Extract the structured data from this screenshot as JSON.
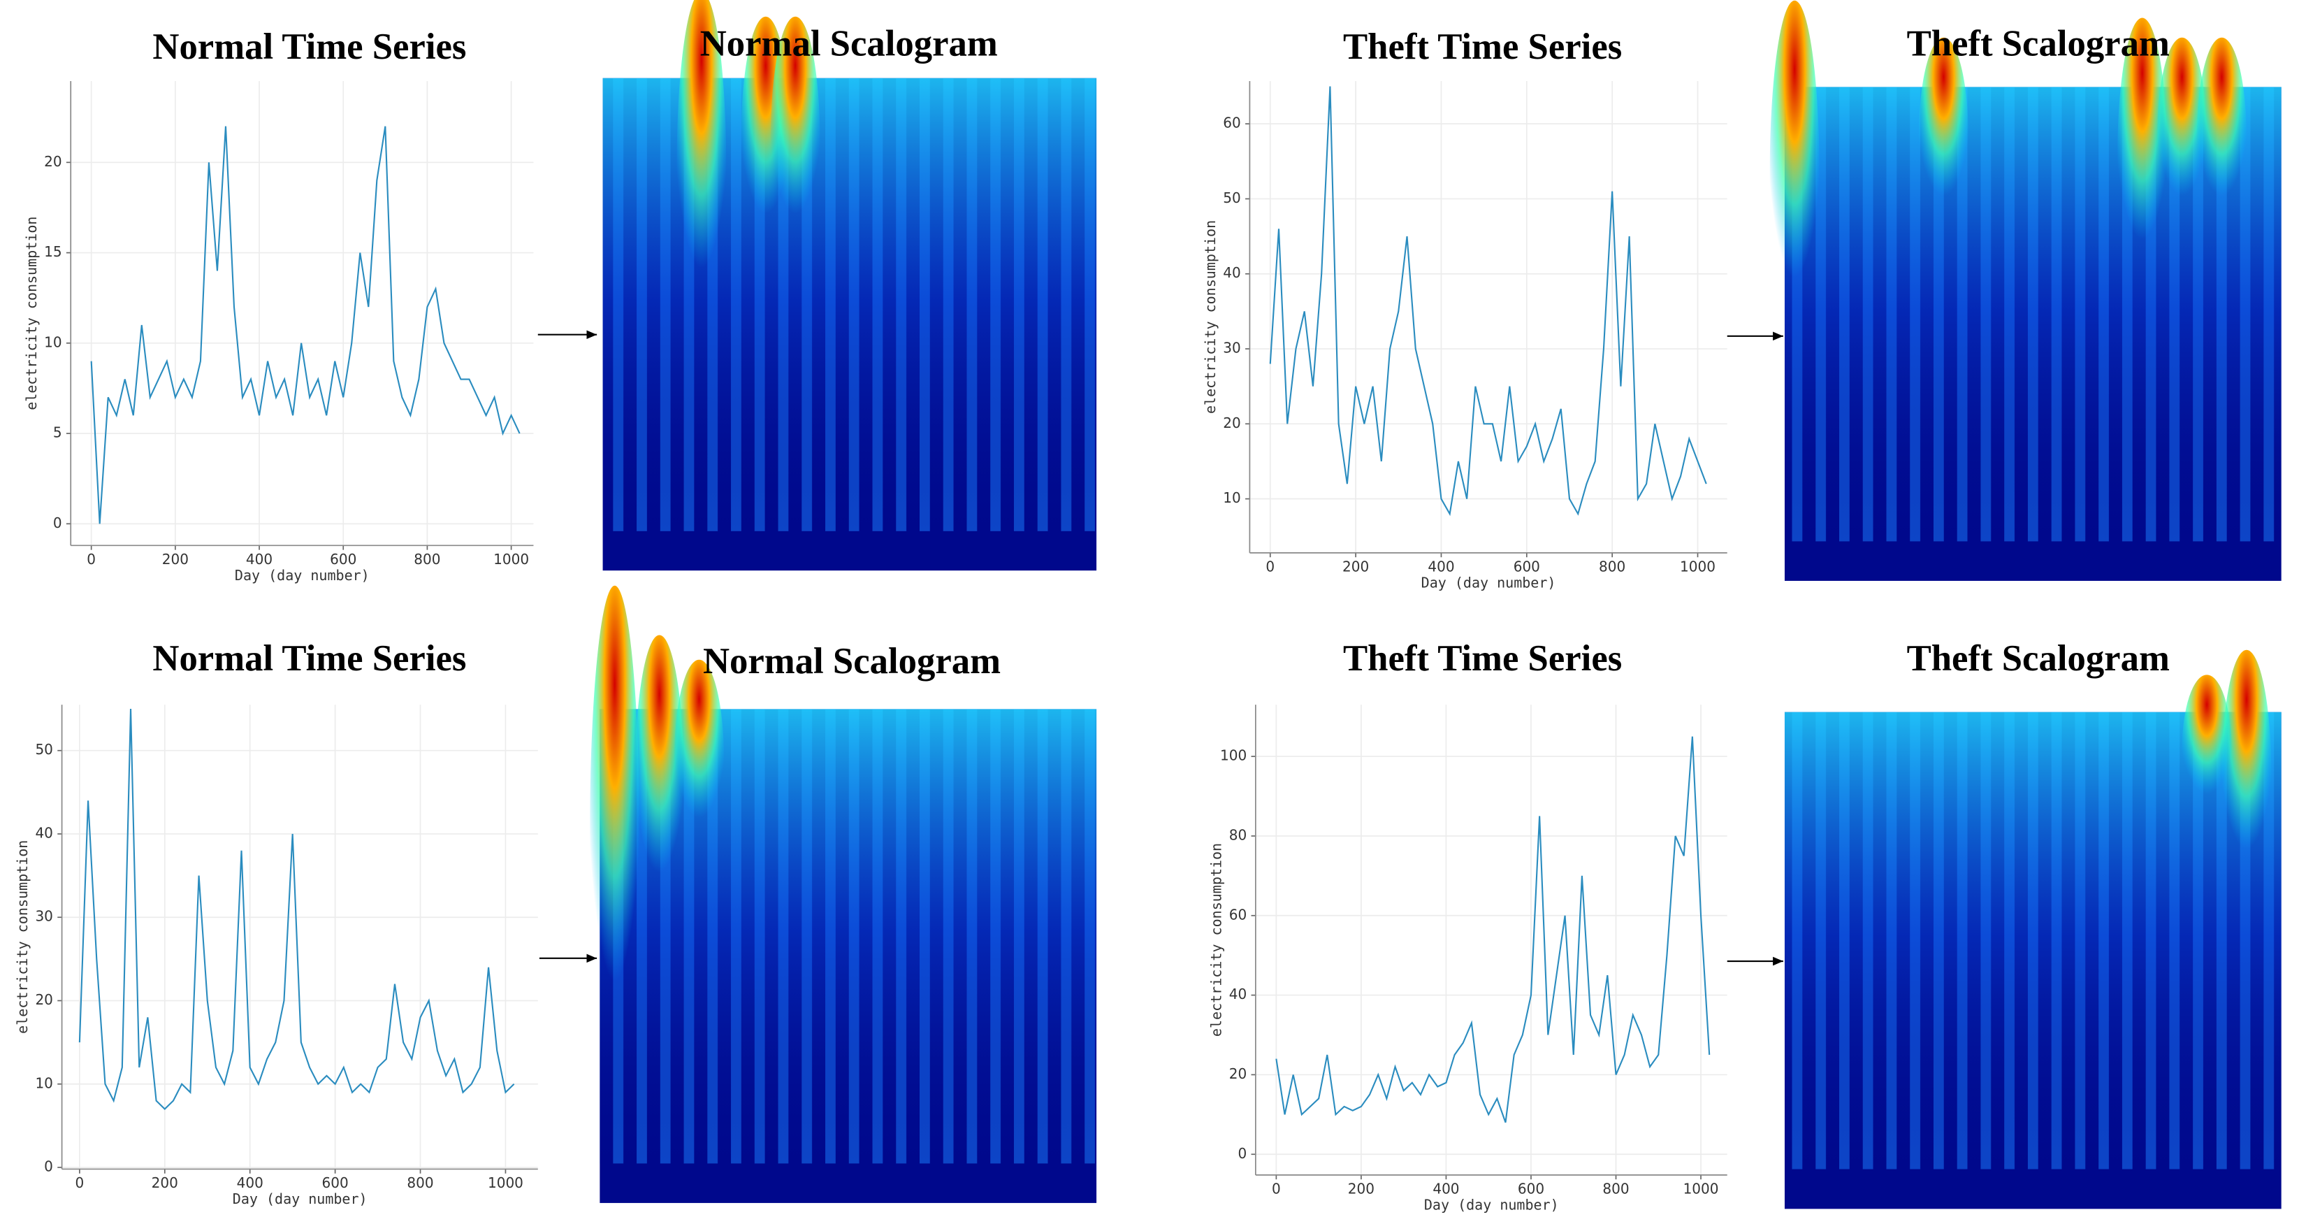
{
  "chart_data": [
    {
      "type": "line",
      "title": "Normal Time Series",
      "xlabel": "Day (day number)",
      "ylabel": "electricity consumption",
      "x": [
        0,
        20,
        40,
        60,
        80,
        100,
        120,
        140,
        160,
        180,
        200,
        220,
        240,
        260,
        280,
        300,
        320,
        340,
        360,
        380,
        400,
        420,
        440,
        460,
        480,
        500,
        520,
        540,
        560,
        580,
        600,
        620,
        640,
        660,
        680,
        700,
        720,
        740,
        760,
        780,
        800,
        820,
        840,
        860,
        880,
        900,
        920,
        940,
        960,
        980,
        1000,
        1020
      ],
      "series": [
        {
          "name": "electricity consumption",
          "color": "#2a8cbf",
          "values": [
            9,
            0,
            7,
            6,
            8,
            6,
            11,
            7,
            8,
            9,
            7,
            8,
            7,
            9,
            20,
            14,
            22,
            12,
            7,
            8,
            6,
            9,
            7,
            8,
            6,
            10,
            7,
            8,
            6,
            9,
            7,
            10,
            15,
            12,
            19,
            22,
            9,
            7,
            6,
            8,
            12,
            13,
            10,
            9,
            8,
            8,
            7,
            6,
            7,
            5,
            6,
            5
          ]
        }
      ],
      "xlim": [
        -49,
        1053
      ],
      "ylim": [
        -1.2,
        24.5
      ],
      "xticks": [
        0,
        200,
        400,
        600,
        800,
        1000
      ],
      "yticks": [
        0,
        5,
        10,
        15,
        20
      ],
      "grid": true
    },
    {
      "type": "scalogram",
      "title": "Normal Scalogram"
    },
    {
      "type": "line",
      "title": "Theft Time Series",
      "xlabel": "Day (day number)",
      "ylabel": "electricity consumption",
      "x": [
        0,
        20,
        40,
        60,
        80,
        100,
        120,
        140,
        160,
        180,
        200,
        220,
        240,
        260,
        280,
        300,
        320,
        340,
        360,
        380,
        400,
        420,
        440,
        460,
        480,
        500,
        520,
        540,
        560,
        580,
        600,
        620,
        640,
        660,
        680,
        700,
        720,
        740,
        760,
        780,
        800,
        820,
        840,
        860,
        880,
        900,
        920,
        940,
        960,
        980,
        1000,
        1020
      ],
      "series": [
        {
          "name": "electricity consumption",
          "color": "#2a8cbf",
          "values": [
            28,
            46,
            20,
            30,
            35,
            25,
            40,
            65,
            20,
            12,
            25,
            20,
            25,
            15,
            30,
            35,
            45,
            30,
            25,
            20,
            10,
            8,
            15,
            10,
            25,
            20,
            20,
            15,
            25,
            15,
            17,
            20,
            15,
            18,
            22,
            10,
            8,
            12,
            15,
            30,
            51,
            25,
            45,
            10,
            12,
            20,
            15,
            10,
            13,
            18,
            15,
            12
          ]
        }
      ],
      "xlim": [
        -48,
        1069
      ],
      "ylim": [
        2.8,
        65.7
      ],
      "xticks": [
        0,
        200,
        400,
        600,
        800,
        1000
      ],
      "yticks": [
        10,
        20,
        30,
        40,
        50,
        60
      ],
      "grid": true
    },
    {
      "type": "scalogram",
      "title": "Theft Scalogram"
    },
    {
      "type": "line",
      "title": "Normal Time Series",
      "xlabel": "Day (day number)",
      "ylabel": "electricity consumption",
      "x": [
        0,
        20,
        40,
        60,
        80,
        100,
        120,
        140,
        160,
        180,
        200,
        220,
        240,
        260,
        280,
        300,
        320,
        340,
        360,
        380,
        400,
        420,
        440,
        460,
        480,
        500,
        520,
        540,
        560,
        580,
        600,
        620,
        640,
        660,
        680,
        700,
        720,
        740,
        760,
        780,
        800,
        820,
        840,
        860,
        880,
        900,
        920,
        940,
        960,
        980,
        1000,
        1020
      ],
      "series": [
        {
          "name": "electricity consumption",
          "color": "#2a8cbf",
          "values": [
            15,
            44,
            25,
            10,
            8,
            12,
            55,
            12,
            18,
            8,
            7,
            8,
            10,
            9,
            35,
            20,
            12,
            10,
            14,
            38,
            12,
            10,
            13,
            15,
            20,
            40,
            15,
            12,
            10,
            11,
            10,
            12,
            9,
            10,
            9,
            12,
            13,
            22,
            15,
            13,
            18,
            20,
            14,
            11,
            13,
            9,
            10,
            12,
            24,
            14,
            9,
            10
          ]
        }
      ],
      "xlim": [
        -41.5,
        1076
      ],
      "ylim": [
        -0.2,
        55.5
      ],
      "xticks": [
        0,
        200,
        400,
        600,
        800,
        1000
      ],
      "yticks": [
        0,
        10,
        20,
        30,
        40,
        50
      ],
      "grid": true
    },
    {
      "type": "scalogram",
      "title": "Normal Scalogram"
    },
    {
      "type": "line",
      "title": "Theft Time Series",
      "xlabel": "Day (day number)",
      "ylabel": "electricity consumption",
      "x": [
        0,
        20,
        40,
        60,
        80,
        100,
        120,
        140,
        160,
        180,
        200,
        220,
        240,
        260,
        280,
        300,
        320,
        340,
        360,
        380,
        400,
        420,
        440,
        460,
        480,
        500,
        520,
        540,
        560,
        580,
        600,
        620,
        640,
        660,
        680,
        700,
        720,
        740,
        760,
        780,
        800,
        820,
        840,
        860,
        880,
        900,
        920,
        940,
        960,
        980,
        1000,
        1020
      ],
      "series": [
        {
          "name": "electricity consumption",
          "color": "#2a8cbf",
          "values": [
            24,
            10,
            20,
            10,
            12,
            14,
            25,
            10,
            12,
            11,
            12,
            15,
            20,
            14,
            22,
            16,
            18,
            15,
            20,
            17,
            18,
            25,
            28,
            33,
            15,
            10,
            14,
            8,
            25,
            30,
            40,
            85,
            30,
            45,
            60,
            25,
            70,
            35,
            30,
            45,
            20,
            25,
            35,
            30,
            22,
            25,
            50,
            80,
            75,
            105,
            60,
            25
          ]
        }
      ],
      "xlim": [
        -48.6,
        1062
      ],
      "ylim": [
        -5.2,
        113
      ],
      "xticks": [
        0,
        200,
        400,
        600,
        800,
        1000
      ],
      "yticks": [
        0,
        20,
        40,
        60,
        80,
        100
      ],
      "grid": true
    },
    {
      "type": "scalogram",
      "title": "Theft Scalogram"
    }
  ]
}
